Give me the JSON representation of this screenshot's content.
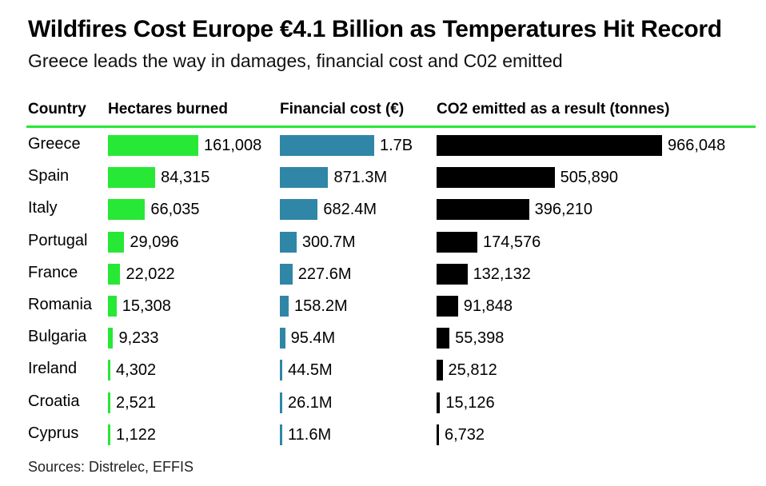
{
  "header": {
    "title": "Wildfires Cost Europe €4.1 Billion as Temperatures Hit Record",
    "subtitle": "Greece leads the way in damages, financial cost and C02 emitted"
  },
  "columns": {
    "country": "Country",
    "hectares": "Hectares burned",
    "cost": "Financial cost (€)",
    "co2": "CO2 emitted as a result (tonnes)"
  },
  "colors": {
    "hectares": "#27e835",
    "cost": "#2f86a6",
    "co2": "#000000",
    "rule": "#27e835"
  },
  "chart_data": {
    "type": "table",
    "title": "Wildfires Cost Europe €4.1 Billion as Temperatures Hit Record",
    "subtitle": "Greece leads the way in damages, financial cost and C02 emitted",
    "columns": [
      "Country",
      "Hectares burned",
      "Financial cost (€)",
      "CO2 emitted as a result (tonnes)"
    ],
    "rows": [
      {
        "country": "Greece",
        "hectares": 161008,
        "hectares_label": "161,008",
        "cost": 1700,
        "cost_label": "1.7B",
        "co2": 966048,
        "co2_label": "966,048"
      },
      {
        "country": "Spain",
        "hectares": 84315,
        "hectares_label": "84,315",
        "cost": 871.3,
        "cost_label": "871.3M",
        "co2": 505890,
        "co2_label": "505,890"
      },
      {
        "country": "Italy",
        "hectares": 66035,
        "hectares_label": "66,035",
        "cost": 682.4,
        "cost_label": "682.4M",
        "co2": 396210,
        "co2_label": "396,210"
      },
      {
        "country": "Portugal",
        "hectares": 29096,
        "hectares_label": "29,096",
        "cost": 300.7,
        "cost_label": "300.7M",
        "co2": 174576,
        "co2_label": "174,576"
      },
      {
        "country": "France",
        "hectares": 22022,
        "hectares_label": "22,022",
        "cost": 227.6,
        "cost_label": "227.6M",
        "co2": 132132,
        "co2_label": "132,132"
      },
      {
        "country": "Romania",
        "hectares": 15308,
        "hectares_label": "15,308",
        "cost": 158.2,
        "cost_label": "158.2M",
        "co2": 91848,
        "co2_label": "91,848"
      },
      {
        "country": "Bulgaria",
        "hectares": 9233,
        "hectares_label": "9,233",
        "cost": 95.4,
        "cost_label": "95.4M",
        "co2": 55398,
        "co2_label": "55,398"
      },
      {
        "country": "Ireland",
        "hectares": 4302,
        "hectares_label": "4,302",
        "cost": 44.5,
        "cost_label": "44.5M",
        "co2": 25812,
        "co2_label": "25,812"
      },
      {
        "country": "Croatia",
        "hectares": 2521,
        "hectares_label": "2,521",
        "cost": 26.1,
        "cost_label": "26.1M",
        "co2": 15126,
        "co2_label": "15,126"
      },
      {
        "country": "Cyprus",
        "hectares": 1122,
        "hectares_label": "1,122",
        "cost": 11.6,
        "cost_label": "11.6M",
        "co2": 6732,
        "co2_label": "6,732"
      }
    ]
  },
  "footer": {
    "source": "Sources: Distrelec, EFFIS"
  }
}
